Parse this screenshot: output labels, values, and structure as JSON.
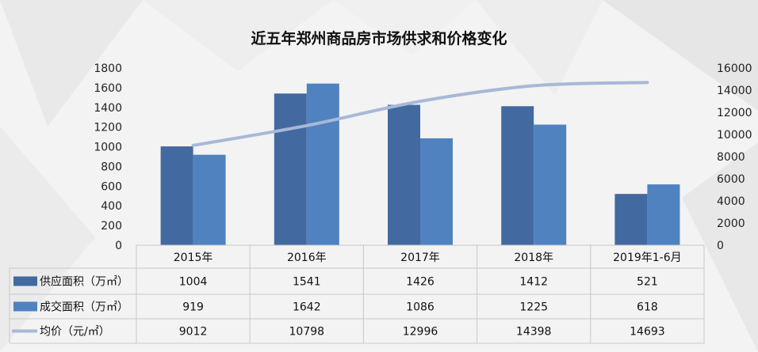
{
  "chart_data": {
    "type": "bar",
    "title": "近五年郑州商品房市场供求和价格变化",
    "categories": [
      "2015年",
      "2016年",
      "2017年",
      "2018年",
      "2019年1-6月"
    ],
    "series": [
      {
        "name": "供应面积（万㎡）",
        "kind": "bar",
        "axis": "left",
        "color": "#426aa0",
        "values": [
          1004,
          1541,
          1426,
          1412,
          521
        ]
      },
      {
        "name": "成交面积（万㎡）",
        "kind": "bar",
        "axis": "left",
        "color": "#4f82bf",
        "values": [
          919,
          1642,
          1086,
          1225,
          618
        ]
      },
      {
        "name": "均价（元/㎡）",
        "kind": "line",
        "axis": "right",
        "color": "#a8b8d8",
        "values": [
          9012,
          10798,
          12996,
          14398,
          14693
        ]
      }
    ],
    "ylim": [
      0,
      1800
    ],
    "yticks": [
      "0",
      "200",
      "400",
      "600",
      "800",
      "1000",
      "1200",
      "1400",
      "1600",
      "1800"
    ],
    "y2lim": [
      0,
      16000
    ],
    "y2ticks": [
      "0",
      "2000",
      "4000",
      "6000",
      "8000",
      "10000",
      "12000",
      "14000",
      "16000"
    ],
    "data_table": true,
    "grid": false
  }
}
